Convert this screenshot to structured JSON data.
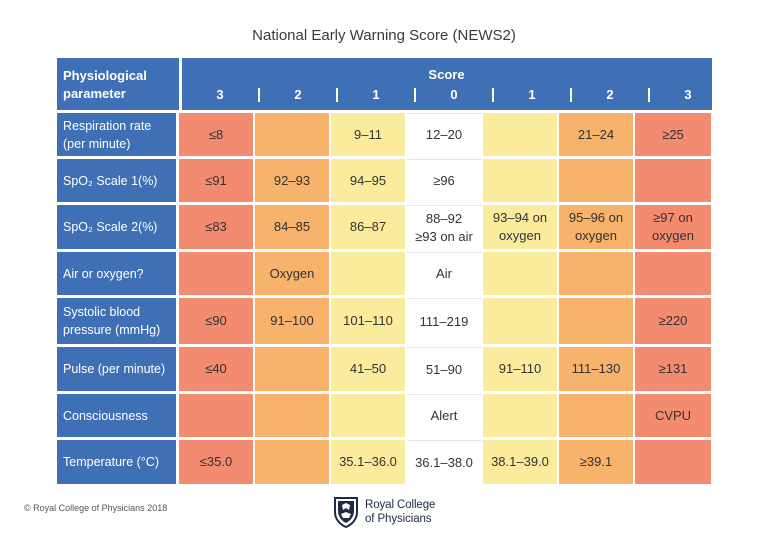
{
  "title": "National Early Warning Score (NEWS2)",
  "header": {
    "param_line1": "Physiological",
    "param_line2": "parameter",
    "score_label": "Score",
    "scores": [
      "3",
      "2",
      "1",
      "0",
      "1",
      "2",
      "3"
    ]
  },
  "rows": [
    {
      "name": "respiration-rate",
      "label": "Respiration rate (per minute)",
      "height": 42,
      "cells": [
        {
          "t": "≤8",
          "s": "3"
        },
        {
          "t": "",
          "s": "2"
        },
        {
          "t": "9–11",
          "s": "1"
        },
        {
          "t": "12–20",
          "s": "0"
        },
        {
          "t": "",
          "s": "1"
        },
        {
          "t": "21–24",
          "s": "2"
        },
        {
          "t": "≥25",
          "s": "3"
        }
      ]
    },
    {
      "name": "spo2-scale-1",
      "label": "SpO₂ Scale 1(%)",
      "height": 42,
      "cells": [
        {
          "t": "≤91",
          "s": "3"
        },
        {
          "t": "92–93",
          "s": "2"
        },
        {
          "t": "94–95",
          "s": "1"
        },
        {
          "t": "≥96",
          "s": "0"
        },
        {
          "t": "",
          "s": "1"
        },
        {
          "t": "",
          "s": "2"
        },
        {
          "t": "",
          "s": "3"
        }
      ]
    },
    {
      "name": "spo2-scale-2",
      "label": "SpO₂ Scale 2(%)",
      "height": 42,
      "cells": [
        {
          "t": "≤83",
          "s": "3"
        },
        {
          "t": "84–85",
          "s": "2"
        },
        {
          "t": "86–87",
          "s": "1"
        },
        {
          "t": "88–92\n≥93 on air",
          "s": "0"
        },
        {
          "t": "93–94 on\noxygen",
          "s": "1"
        },
        {
          "t": "95–96 on\noxygen",
          "s": "2"
        },
        {
          "t": "≥97 on\noxygen",
          "s": "3"
        }
      ]
    },
    {
      "name": "air-or-oxygen",
      "label": "Air or oxygen?",
      "height": 42,
      "cells": [
        {
          "t": "",
          "s": "3"
        },
        {
          "t": "Oxygen",
          "s": "2"
        },
        {
          "t": "",
          "s": "1"
        },
        {
          "t": "Air",
          "s": "0"
        },
        {
          "t": "",
          "s": "1"
        },
        {
          "t": "",
          "s": "2"
        },
        {
          "t": "",
          "s": "3"
        }
      ]
    },
    {
      "name": "systolic-blood-pressure",
      "label": "Systolic blood pressure (mmHg)",
      "height": 42,
      "cells": [
        {
          "t": "≤90",
          "s": "3"
        },
        {
          "t": "91–100",
          "s": "2"
        },
        {
          "t": "101–110",
          "s": "1"
        },
        {
          "t": "111–219",
          "s": "0"
        },
        {
          "t": "",
          "s": "1"
        },
        {
          "t": "",
          "s": "2"
        },
        {
          "t": "≥220",
          "s": "3"
        }
      ]
    },
    {
      "name": "pulse",
      "label": "Pulse (per minute)",
      "height": 42,
      "cells": [
        {
          "t": "≤40",
          "s": "3"
        },
        {
          "t": "",
          "s": "2"
        },
        {
          "t": "41–50",
          "s": "1"
        },
        {
          "t": "51–90",
          "s": "0"
        },
        {
          "t": "91–110",
          "s": "1"
        },
        {
          "t": "111–130",
          "s": "2"
        },
        {
          "t": "≥131",
          "s": "3"
        }
      ]
    },
    {
      "name": "consciousness",
      "label": "Consciousness",
      "height": 42,
      "cells": [
        {
          "t": "",
          "s": "3"
        },
        {
          "t": "",
          "s": "2"
        },
        {
          "t": "",
          "s": "1"
        },
        {
          "t": "Alert",
          "s": "0"
        },
        {
          "t": "",
          "s": "1"
        },
        {
          "t": "",
          "s": "2"
        },
        {
          "t": "CVPU",
          "s": "3"
        }
      ]
    },
    {
      "name": "temperature",
      "label": "Temperature (°C)",
      "height": 42,
      "cells": [
        {
          "t": "≤35.0",
          "s": "3"
        },
        {
          "t": "",
          "s": "2"
        },
        {
          "t": "35.1–36.0",
          "s": "1"
        },
        {
          "t": "36.1–38.0",
          "s": "0"
        },
        {
          "t": "38.1–39.0",
          "s": "1"
        },
        {
          "t": "≥39.1",
          "s": "2"
        },
        {
          "t": "",
          "s": "3"
        }
      ]
    }
  ],
  "colors": {
    "score3": "#f28b6f",
    "score2": "#f7b26b",
    "score1": "#fbeb9d",
    "score0": "#ffffff",
    "header": "#3f6fb5"
  },
  "footer": {
    "copyright": "© Royal College of Physicians 2018",
    "logo_line1": "Royal College",
    "logo_line2": "of Physicians",
    "logo_icon": "rcp-crest-icon"
  }
}
